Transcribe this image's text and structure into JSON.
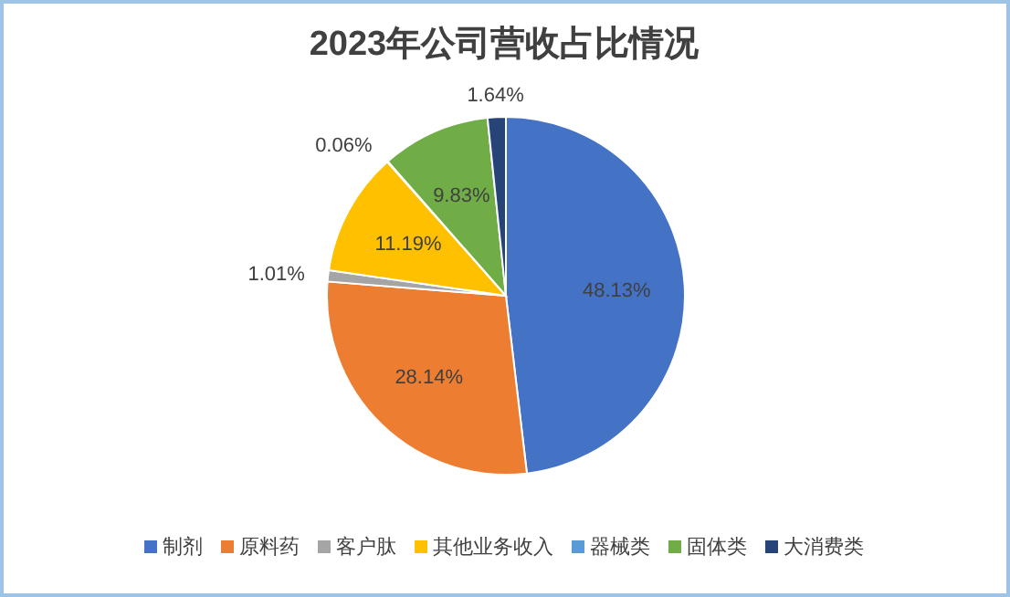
{
  "chart_data": {
    "type": "pie",
    "title": "2023年公司营收占比情况",
    "categories": [
      "制剂",
      "原料药",
      "客户肽",
      "其他业务收入",
      "器械类",
      "固体类",
      "大消费类"
    ],
    "values": [
      48.13,
      28.14,
      1.01,
      11.19,
      0.06,
      9.83,
      1.64
    ],
    "colors": [
      "#4472c4",
      "#ed7d31",
      "#a5a5a5",
      "#ffc000",
      "#5b9bd5",
      "#70ad47",
      "#264478"
    ],
    "value_labels": [
      "48.13%",
      "28.14%",
      "1.01%",
      "11.19%",
      "0.06%",
      "9.83%",
      "1.64%"
    ],
    "legend": "bottom"
  }
}
